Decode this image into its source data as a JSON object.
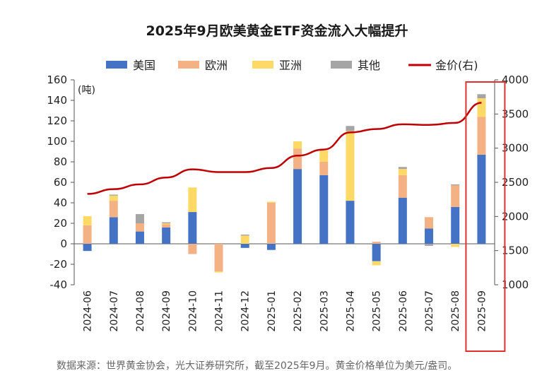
{
  "chart_data": {
    "type": "bar",
    "stacked": true,
    "title": "2025年9月欧美黄金ETF资金流入大幅提升",
    "y_unit_label": "(吨)",
    "categories": [
      "2024-06",
      "2024-07",
      "2024-08",
      "2024-09",
      "2024-10",
      "2024-11",
      "2024-12",
      "2025-01",
      "2025-02",
      "2025-03",
      "2025-04",
      "2025-05",
      "2025-06",
      "2025-07",
      "2025-08",
      "2025-09"
    ],
    "series": [
      {
        "name": "美国",
        "color": "#4472C4",
        "values": [
          -7,
          26,
          12,
          16,
          31,
          0,
          -4,
          -6,
          73,
          67,
          42,
          -17,
          45,
          15,
          36,
          87
        ]
      },
      {
        "name": "欧洲",
        "color": "#F4B183",
        "values": [
          18,
          16,
          8,
          3,
          -10,
          -27,
          0,
          40,
          20,
          13,
          0,
          2,
          22,
          11,
          21,
          37
        ]
      },
      {
        "name": "亚洲",
        "color": "#FFD966",
        "values": [
          9,
          5,
          0,
          1,
          24,
          -1,
          8,
          1,
          7,
          11,
          68,
          -4,
          6,
          0,
          -3,
          18
        ]
      },
      {
        "name": "其他",
        "color": "#A5A5A5",
        "values": [
          0,
          1,
          9,
          1,
          0,
          0,
          1,
          0,
          0,
          0,
          5,
          0,
          2,
          -2,
          1,
          4
        ]
      }
    ],
    "line": {
      "name": "金价(右)",
      "color": "#C00000",
      "axis": "right",
      "values": [
        2330,
        2400,
        2470,
        2570,
        2690,
        2650,
        2650,
        2710,
        2890,
        2980,
        3230,
        3280,
        3350,
        3340,
        3370,
        3665
      ]
    },
    "y_left": {
      "min": -40,
      "max": 160,
      "ticks": [
        -40,
        -20,
        0,
        20,
        40,
        60,
        80,
        100,
        120,
        140,
        160
      ]
    },
    "y_right": {
      "min": 1000,
      "max": 4000,
      "ticks": [
        1000,
        1500,
        2000,
        2500,
        3000,
        3500,
        4000
      ]
    },
    "legend_position": "top",
    "highlight_category": "2025-09"
  },
  "footnote": "数据来源：世界黄金协会，光大证券研究所，截至2025年9月。黄金价格单位为美元/盎司。"
}
